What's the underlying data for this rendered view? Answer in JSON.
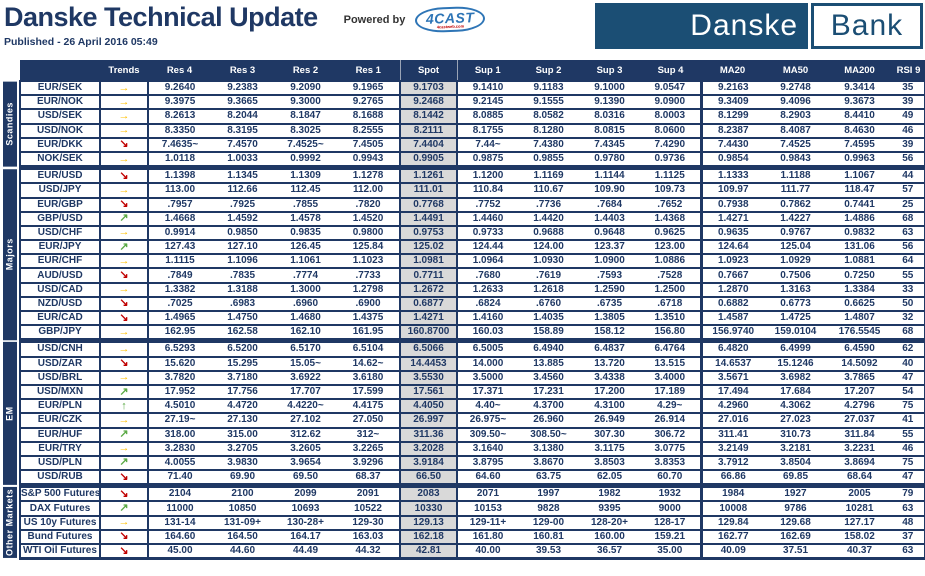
{
  "header": {
    "title": "Danske Technical Update",
    "powered_by": "Powered by",
    "vendor": "4CAST",
    "vendor_sub": "4castweb.com",
    "published": "Published - 26 April 2016 05:49",
    "logo_left": "Danske",
    "logo_right": "Bank"
  },
  "colors": {
    "navy": "#1F3864",
    "logo_navy": "#1B4E74",
    "spot_bg": "#D9D9D9",
    "trend_up_green": "#5BAA46",
    "trend_side_yellow": "#FFC000",
    "trend_down_red": "#C00000",
    "vendor_blue": "#2E75B6"
  },
  "trend_styles": {
    "right": {
      "glyph": "→",
      "color": "#FFC000"
    },
    "down-right": {
      "glyph": "↘",
      "color": "#C00000"
    },
    "up-right": {
      "glyph": "↗",
      "color": "#5BAA46"
    },
    "up": {
      "glyph": "↑",
      "color": "#5BAA46"
    }
  },
  "table": {
    "columns": [
      "Trends",
      "Res 4",
      "Res 3",
      "Res 2",
      "Res 1",
      "Spot",
      "Sup 1",
      "Sup 2",
      "Sup 3",
      "Sup 4",
      "MA20",
      "MA50",
      "MA200",
      "RSI 9"
    ],
    "sections": [
      {
        "label": "Scandies",
        "rows": [
          {
            "instrument": "EUR/SEK",
            "trend": "right",
            "values": [
              "9.2640",
              "9.2383",
              "9.2090",
              "9.1965",
              "9.1703",
              "9.1410",
              "9.1183",
              "9.1000",
              "9.0547",
              "9.2163",
              "9.2748",
              "9.3414",
              "35"
            ]
          },
          {
            "instrument": "EUR/NOK",
            "trend": "right",
            "values": [
              "9.3975",
              "9.3665",
              "9.3000",
              "9.2765",
              "9.2468",
              "9.2145",
              "9.1555",
              "9.1390",
              "9.0900",
              "9.3409",
              "9.4096",
              "9.3673",
              "39"
            ]
          },
          {
            "instrument": "USD/SEK",
            "trend": "right",
            "values": [
              "8.2613",
              "8.2044",
              "8.1847",
              "8.1688",
              "8.1442",
              "8.0885",
              "8.0582",
              "8.0316",
              "8.0003",
              "8.1299",
              "8.2903",
              "8.4410",
              "49"
            ]
          },
          {
            "instrument": "USD/NOK",
            "trend": "right",
            "values": [
              "8.3350",
              "8.3195",
              "8.3025",
              "8.2555",
              "8.2111",
              "8.1755",
              "8.1280",
              "8.0815",
              "8.0600",
              "8.2387",
              "8.4087",
              "8.4630",
              "46"
            ]
          },
          {
            "instrument": "EUR/DKK",
            "trend": "down-right",
            "values": [
              "7.4635~",
              "7.4570",
              "7.4525~",
              "7.4505",
              "7.4404",
              "7.44~",
              "7.4380",
              "7.4345",
              "7.4290",
              "7.4430",
              "7.4525",
              "7.4595",
              "39"
            ]
          },
          {
            "instrument": "NOK/SEK",
            "trend": "right",
            "values": [
              "1.0118",
              "1.0033",
              "0.9992",
              "0.9943",
              "0.9905",
              "0.9875",
              "0.9855",
              "0.9780",
              "0.9736",
              "0.9854",
              "0.9843",
              "0.9963",
              "56"
            ]
          }
        ]
      },
      {
        "label": "Majors",
        "rows": [
          {
            "instrument": "EUR/USD",
            "trend": "down-right",
            "values": [
              "1.1398",
              "1.1345",
              "1.1309",
              "1.1278",
              "1.1261",
              "1.1200",
              "1.1169",
              "1.1144",
              "1.1125",
              "1.1333",
              "1.1188",
              "1.1067",
              "44"
            ]
          },
          {
            "instrument": "USD/JPY",
            "trend": "right",
            "values": [
              "113.00",
              "112.66",
              "112.45",
              "112.00",
              "111.01",
              "110.84",
              "110.67",
              "109.90",
              "109.73",
              "109.97",
              "111.77",
              "118.47",
              "57"
            ]
          },
          {
            "instrument": "EUR/GBP",
            "trend": "down-right",
            "values": [
              ".7957",
              ".7925",
              ".7855",
              ".7820",
              "0.7768",
              ".7752",
              ".7736",
              ".7684",
              ".7652",
              "0.7938",
              "0.7862",
              "0.7441",
              "25"
            ]
          },
          {
            "instrument": "GBP/USD",
            "trend": "up-right",
            "values": [
              "1.4668",
              "1.4592",
              "1.4578",
              "1.4520",
              "1.4491",
              "1.4460",
              "1.4420",
              "1.4403",
              "1.4368",
              "1.4271",
              "1.4227",
              "1.4886",
              "68"
            ]
          },
          {
            "instrument": "USD/CHF",
            "trend": "right",
            "values": [
              "0.9914",
              "0.9850",
              "0.9835",
              "0.9800",
              "0.9753",
              "0.9733",
              "0.9688",
              "0.9648",
              "0.9625",
              "0.9635",
              "0.9767",
              "0.9832",
              "63"
            ]
          },
          {
            "instrument": "EUR/JPY",
            "trend": "up-right",
            "values": [
              "127.43",
              "127.10",
              "126.45",
              "125.84",
              "125.02",
              "124.44",
              "124.00",
              "123.37",
              "123.00",
              "124.64",
              "125.04",
              "131.06",
              "56"
            ]
          },
          {
            "instrument": "EUR/CHF",
            "trend": "right",
            "values": [
              "1.1115",
              "1.1096",
              "1.1061",
              "1.1023",
              "1.0981",
              "1.0964",
              "1.0930",
              "1.0900",
              "1.0886",
              "1.0923",
              "1.0929",
              "1.0881",
              "64"
            ]
          },
          {
            "instrument": "AUD/USD",
            "trend": "down-right",
            "values": [
              ".7849",
              ".7835",
              ".7774",
              ".7733",
              "0.7711",
              ".7680",
              ".7619",
              ".7593",
              ".7528",
              "0.7667",
              "0.7506",
              "0.7250",
              "55"
            ]
          },
          {
            "instrument": "USD/CAD",
            "trend": "right",
            "values": [
              "1.3382",
              "1.3188",
              "1.3000",
              "1.2798",
              "1.2672",
              "1.2633",
              "1.2618",
              "1.2590",
              "1.2500",
              "1.2870",
              "1.3163",
              "1.3384",
              "33"
            ]
          },
          {
            "instrument": "NZD/USD",
            "trend": "down-right",
            "values": [
              ".7025",
              ".6983",
              ".6960",
              ".6900",
              "0.6877",
              ".6824",
              ".6760",
              ".6735",
              ".6718",
              "0.6882",
              "0.6773",
              "0.6625",
              "50"
            ]
          },
          {
            "instrument": "EUR/CAD",
            "trend": "down-right",
            "values": [
              "1.4965",
              "1.4750",
              "1.4680",
              "1.4375",
              "1.4271",
              "1.4160",
              "1.4035",
              "1.3805",
              "1.3510",
              "1.4587",
              "1.4725",
              "1.4807",
              "32"
            ]
          },
          {
            "instrument": "GBP/JPY",
            "trend": "right",
            "values": [
              "162.95",
              "162.58",
              "162.10",
              "161.95",
              "160.8700",
              "160.03",
              "158.89",
              "158.12",
              "156.80",
              "156.9740",
              "159.0104",
              "176.5545",
              "68"
            ]
          }
        ]
      },
      {
        "label": "EM",
        "rows": [
          {
            "instrument": "USD/CNH",
            "trend": "right",
            "values": [
              "6.5293",
              "6.5200",
              "6.5170",
              "6.5104",
              "6.5066",
              "6.5005",
              "6.4940",
              "6.4837",
              "6.4764",
              "6.4820",
              "6.4999",
              "6.4590",
              "62"
            ]
          },
          {
            "instrument": "USD/ZAR",
            "trend": "down-right",
            "values": [
              "15.620",
              "15.295",
              "15.05~",
              "14.62~",
              "14.4453",
              "14.000",
              "13.885",
              "13.720",
              "13.515",
              "14.6537",
              "15.1246",
              "14.5092",
              "40"
            ]
          },
          {
            "instrument": "USD/BRL",
            "trend": "right",
            "values": [
              "3.7820",
              "3.7180",
              "3.6922",
              "3.6180",
              "3.5530",
              "3.5000",
              "3.4560",
              "3.4338",
              "3.4000",
              "3.5671",
              "3.6982",
              "3.7865",
              "47"
            ]
          },
          {
            "instrument": "USD/MXN",
            "trend": "up-right",
            "values": [
              "17.952",
              "17.756",
              "17.707",
              "17.599",
              "17.561",
              "17.371",
              "17.231",
              "17.200",
              "17.189",
              "17.494",
              "17.684",
              "17.207",
              "54"
            ]
          },
          {
            "instrument": "EUR/PLN",
            "trend": "up",
            "values": [
              "4.5010",
              "4.4720",
              "4.4220~",
              "4.4175",
              "4.4050",
              "4.40~",
              "4.3700",
              "4.3100",
              "4.29~",
              "4.2960",
              "4.3062",
              "4.2796",
              "75"
            ]
          },
          {
            "instrument": "EUR/CZK",
            "trend": "right",
            "values": [
              "27.19~",
              "27.130",
              "27.102",
              "27.050",
              "26.997",
              "26.975~",
              "26.960",
              "26.949",
              "26.914",
              "27.016",
              "27.023",
              "27.037",
              "41"
            ]
          },
          {
            "instrument": "EUR/HUF",
            "trend": "up-right",
            "values": [
              "318.00",
              "315.00",
              "312.62",
              "312~",
              "311.36",
              "309.50~",
              "308.50~",
              "307.30",
              "306.72",
              "311.41",
              "310.73",
              "311.84",
              "55"
            ]
          },
          {
            "instrument": "EUR/TRY",
            "trend": "right",
            "values": [
              "3.2830",
              "3.2705",
              "3.2605",
              "3.2265",
              "3.2028",
              "3.1640",
              "3.1380",
              "3.1175",
              "3.0775",
              "3.2149",
              "3.2181",
              "3.2231",
              "46"
            ]
          },
          {
            "instrument": "USD/PLN",
            "trend": "up-right",
            "values": [
              "4.0055",
              "3.9830",
              "3.9654",
              "3.9296",
              "3.9184",
              "3.8795",
              "3.8670",
              "3.8503",
              "3.8353",
              "3.7912",
              "3.8504",
              "3.8694",
              "75"
            ]
          },
          {
            "instrument": "USD/RUB",
            "trend": "down-right",
            "values": [
              "71.40",
              "69.90",
              "69.50",
              "68.37",
              "66.50",
              "64.60",
              "63.75",
              "62.05",
              "60.70",
              "66.86",
              "69.85",
              "68.64",
              "47"
            ]
          }
        ]
      },
      {
        "label": "Other Markets",
        "rows": [
          {
            "instrument": "S&P 500 Futures",
            "trend": "down-right",
            "values": [
              "2104",
              "2100",
              "2099",
              "2091",
              "2083",
              "2071",
              "1997",
              "1982",
              "1932",
              "1984",
              "1927",
              "2005",
              "79"
            ]
          },
          {
            "instrument": "DAX Futures",
            "trend": "up-right",
            "values": [
              "11000",
              "10850",
              "10693",
              "10522",
              "10330",
              "10153",
              "9828",
              "9395",
              "9000",
              "10008",
              "9786",
              "10281",
              "63"
            ]
          },
          {
            "instrument": "US 10y Futures",
            "trend": "right",
            "values": [
              "131-14",
              "131-09+",
              "130-28+",
              "129-30",
              "129.13",
              "129-11+",
              "129-00",
              "128-20+",
              "128-17",
              "129.84",
              "129.68",
              "127.17",
              "48"
            ]
          },
          {
            "instrument": "Bund Futures",
            "trend": "down-right",
            "values": [
              "164.60",
              "164.50",
              "164.17",
              "163.03",
              "162.18",
              "161.80",
              "160.81",
              "160.00",
              "159.21",
              "162.77",
              "162.69",
              "158.02",
              "37"
            ]
          },
          {
            "instrument": "WTI Oil Futures",
            "trend": "down-right",
            "values": [
              "45.00",
              "44.60",
              "44.49",
              "44.32",
              "42.81",
              "40.00",
              "39.53",
              "36.57",
              "35.00",
              "40.09",
              "37.51",
              "40.37",
              "63"
            ]
          }
        ]
      }
    ]
  }
}
